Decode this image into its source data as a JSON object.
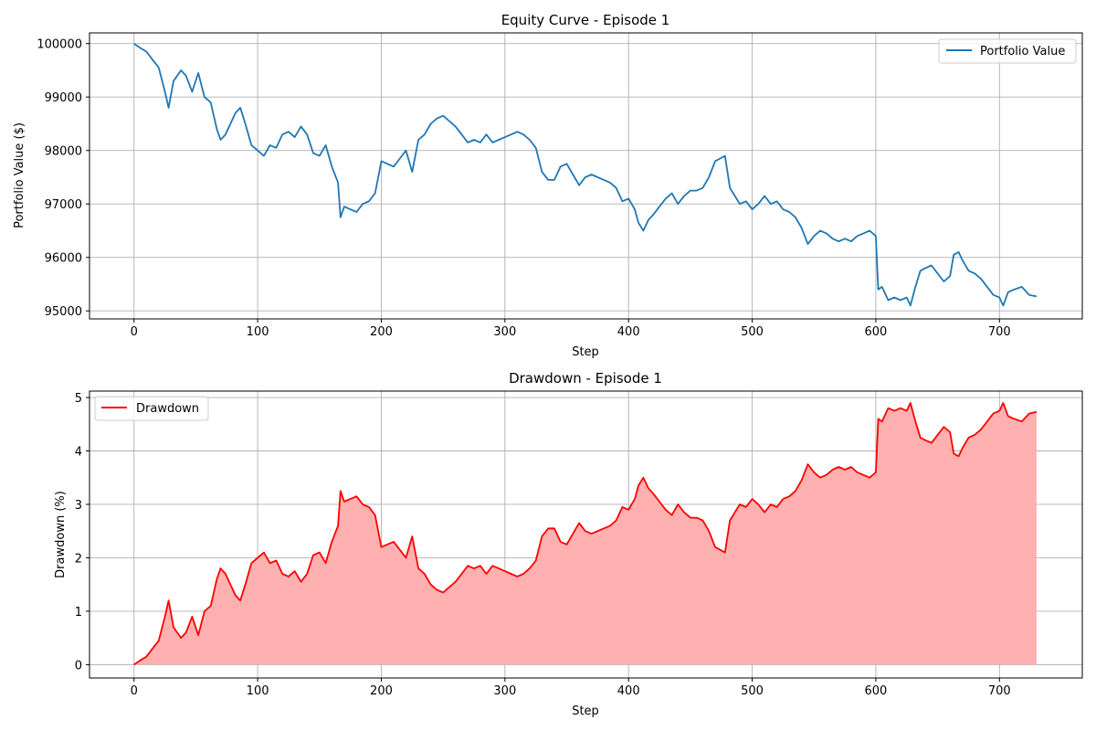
{
  "chart_data": [
    {
      "type": "line",
      "title": "Equity Curve - Episode 1",
      "xlabel": "Step",
      "ylabel": "Portfolio Value ($)",
      "xlim": [
        -36,
        767
      ],
      "ylim": [
        94850,
        100200
      ],
      "xticks": [
        0,
        100,
        200,
        300,
        400,
        500,
        600,
        700
      ],
      "yticks": [
        95000,
        96000,
        97000,
        98000,
        99000,
        100000
      ],
      "grid": true,
      "legend": "top-right",
      "series": [
        {
          "name": "Portfolio Value",
          "color": "#1f77b4",
          "x": [
            0,
            5,
            10,
            15,
            20,
            25,
            28,
            32,
            38,
            42,
            47,
            52,
            57,
            62,
            67,
            70,
            74,
            78,
            82,
            86,
            90,
            95,
            100,
            105,
            110,
            115,
            120,
            125,
            130,
            135,
            140,
            145,
            150,
            155,
            160,
            165,
            167,
            170,
            175,
            180,
            185,
            190,
            195,
            200,
            205,
            210,
            215,
            220,
            225,
            230,
            235,
            240,
            245,
            250,
            255,
            260,
            265,
            270,
            275,
            280,
            285,
            290,
            295,
            300,
            305,
            310,
            315,
            320,
            325,
            330,
            335,
            340,
            345,
            350,
            355,
            360,
            365,
            370,
            375,
            380,
            385,
            390,
            395,
            400,
            405,
            408,
            412,
            416,
            420,
            425,
            430,
            435,
            440,
            445,
            450,
            455,
            460,
            465,
            470,
            474,
            478,
            482,
            486,
            490,
            495,
            500,
            505,
            510,
            515,
            520,
            525,
            530,
            535,
            540,
            545,
            550,
            555,
            560,
            565,
            570,
            575,
            580,
            585,
            590,
            595,
            600,
            602,
            605,
            610,
            615,
            620,
            625,
            628,
            632,
            636,
            640,
            645,
            650,
            655,
            660,
            663,
            667,
            670,
            675,
            680,
            685,
            690,
            695,
            700,
            703,
            707,
            712,
            718,
            724,
            730
          ],
          "y": [
            100000,
            99920,
            99850,
            99700,
            99550,
            99100,
            98800,
            99300,
            99500,
            99400,
            99100,
            99450,
            99000,
            98900,
            98400,
            98200,
            98300,
            98500,
            98700,
            98800,
            98500,
            98100,
            98000,
            97900,
            98100,
            98050,
            98300,
            98350,
            98250,
            98450,
            98300,
            97950,
            97900,
            98100,
            97700,
            97400,
            96750,
            96950,
            96900,
            96850,
            97000,
            97050,
            97200,
            97800,
            97750,
            97700,
            97850,
            98000,
            97600,
            98200,
            98300,
            98500,
            98600,
            98650,
            98550,
            98450,
            98300,
            98150,
            98200,
            98150,
            98300,
            98150,
            98200,
            98250,
            98300,
            98350,
            98300,
            98200,
            98050,
            97600,
            97450,
            97450,
            97700,
            97750,
            97550,
            97350,
            97500,
            97550,
            97500,
            97450,
            97400,
            97300,
            97050,
            97100,
            96900,
            96650,
            96500,
            96700,
            96800,
            96950,
            97100,
            97200,
            97000,
            97150,
            97250,
            97250,
            97300,
            97500,
            97800,
            97850,
            97900,
            97300,
            97150,
            97000,
            97050,
            96900,
            97000,
            97150,
            97000,
            97050,
            96900,
            96850,
            96750,
            96550,
            96250,
            96400,
            96500,
            96450,
            96350,
            96300,
            96350,
            96300,
            96400,
            96450,
            96500,
            96400,
            95400,
            95450,
            95200,
            95250,
            95200,
            95250,
            95100,
            95450,
            95750,
            95800,
            95850,
            95700,
            95550,
            95650,
            96050,
            96100,
            95950,
            95750,
            95700,
            95600,
            95450,
            95300,
            95250,
            95100,
            95350,
            95400,
            95450,
            95300,
            95270
          ]
        }
      ]
    },
    {
      "type": "area",
      "title": "Drawdown - Episode 1",
      "xlabel": "Step",
      "ylabel": "Drawdown (%)",
      "xlim": [
        -36,
        767
      ],
      "ylim": [
        -0.25,
        5.12
      ],
      "xticks": [
        0,
        100,
        200,
        300,
        400,
        500,
        600,
        700
      ],
      "yticks": [
        0,
        1,
        2,
        3,
        4,
        5
      ],
      "grid": true,
      "legend": "top-left",
      "series": [
        {
          "name": "Drawdown",
          "color": "#ff0000",
          "fill": "#ffb0b0",
          "x": [
            0,
            5,
            10,
            15,
            20,
            25,
            28,
            32,
            38,
            42,
            47,
            52,
            57,
            62,
            67,
            70,
            74,
            78,
            82,
            86,
            90,
            95,
            100,
            105,
            110,
            115,
            120,
            125,
            130,
            135,
            140,
            145,
            150,
            155,
            160,
            165,
            167,
            170,
            175,
            180,
            185,
            190,
            195,
            200,
            205,
            210,
            215,
            220,
            225,
            230,
            235,
            240,
            245,
            250,
            255,
            260,
            265,
            270,
            275,
            280,
            285,
            290,
            295,
            300,
            305,
            310,
            315,
            320,
            325,
            330,
            335,
            340,
            345,
            350,
            355,
            360,
            365,
            370,
            375,
            380,
            385,
            390,
            395,
            400,
            405,
            408,
            412,
            416,
            420,
            425,
            430,
            435,
            440,
            445,
            450,
            455,
            460,
            465,
            470,
            474,
            478,
            482,
            486,
            490,
            495,
            500,
            505,
            510,
            515,
            520,
            525,
            530,
            535,
            540,
            545,
            550,
            555,
            560,
            565,
            570,
            575,
            580,
            585,
            590,
            595,
            600,
            602,
            605,
            610,
            615,
            620,
            625,
            628,
            632,
            636,
            640,
            645,
            650,
            655,
            660,
            663,
            667,
            670,
            675,
            680,
            685,
            690,
            695,
            700,
            703,
            707,
            712,
            718,
            724,
            730
          ],
          "y": [
            0,
            0.08,
            0.15,
            0.3,
            0.45,
            0.9,
            1.2,
            0.7,
            0.5,
            0.6,
            0.9,
            0.55,
            1.0,
            1.1,
            1.6,
            1.8,
            1.7,
            1.5,
            1.3,
            1.2,
            1.5,
            1.9,
            2.0,
            2.1,
            1.9,
            1.95,
            1.7,
            1.65,
            1.75,
            1.55,
            1.7,
            2.05,
            2.1,
            1.9,
            2.3,
            2.6,
            3.25,
            3.05,
            3.1,
            3.15,
            3.0,
            2.95,
            2.8,
            2.2,
            2.25,
            2.3,
            2.15,
            2.0,
            2.4,
            1.8,
            1.7,
            1.5,
            1.4,
            1.35,
            1.45,
            1.55,
            1.7,
            1.85,
            1.8,
            1.85,
            1.7,
            1.85,
            1.8,
            1.75,
            1.7,
            1.65,
            1.7,
            1.8,
            1.95,
            2.4,
            2.55,
            2.55,
            2.3,
            2.25,
            2.45,
            2.65,
            2.5,
            2.45,
            2.5,
            2.55,
            2.6,
            2.7,
            2.95,
            2.9,
            3.1,
            3.35,
            3.5,
            3.3,
            3.2,
            3.05,
            2.9,
            2.8,
            3.0,
            2.85,
            2.75,
            2.75,
            2.7,
            2.5,
            2.2,
            2.15,
            2.1,
            2.7,
            2.85,
            3.0,
            2.95,
            3.1,
            3.0,
            2.85,
            3.0,
            2.95,
            3.1,
            3.15,
            3.25,
            3.45,
            3.75,
            3.6,
            3.5,
            3.55,
            3.65,
            3.7,
            3.65,
            3.7,
            3.6,
            3.55,
            3.5,
            3.6,
            4.6,
            4.55,
            4.8,
            4.75,
            4.8,
            4.75,
            4.9,
            4.55,
            4.25,
            4.2,
            4.15,
            4.3,
            4.45,
            4.35,
            3.95,
            3.9,
            4.05,
            4.25,
            4.3,
            4.4,
            4.55,
            4.7,
            4.75,
            4.9,
            4.65,
            4.6,
            4.55,
            4.7,
            4.73
          ]
        }
      ]
    }
  ]
}
